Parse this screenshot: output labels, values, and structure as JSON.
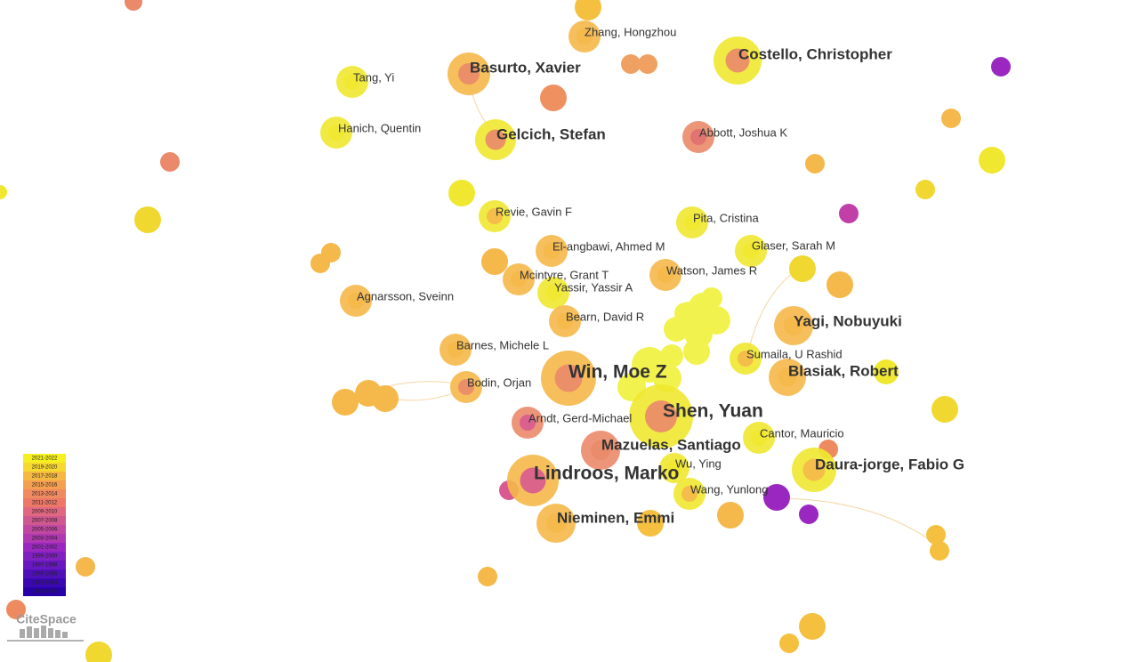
{
  "nodes": [
    {
      "label": "Zhang, Hongzhou"
    },
    {
      "label": "Basurto, Xavier"
    },
    {
      "label": "Costello, Christopher"
    },
    {
      "label": "Tang, Yi"
    },
    {
      "label": "Hanich, Quentin"
    },
    {
      "label": "Gelcich, Stefan"
    },
    {
      "label": "Abbott, Joshua K"
    },
    {
      "label": "Revie, Gavin F"
    },
    {
      "label": "Pita, Cristina"
    },
    {
      "label": "El-angbawi, Ahmed M"
    },
    {
      "label": "Glaser, Sarah M"
    },
    {
      "label": "Mcintyre, Grant T"
    },
    {
      "label": "Watson, James R"
    },
    {
      "label": "Yassir, Yassir A"
    },
    {
      "label": "Agnarsson, Sveinn"
    },
    {
      "label": "Bearn, David R"
    },
    {
      "label": "Yagi, Nobuyuki"
    },
    {
      "label": "Barnes, Michele L"
    },
    {
      "label": "Sumaila, U Rashid"
    },
    {
      "label": "Win, Moe Z"
    },
    {
      "label": "Blasiak, Robert"
    },
    {
      "label": "Bodin, Orjan"
    },
    {
      "label": "Shen, Yuan"
    },
    {
      "label": "Arndt, Gerd-Michael"
    },
    {
      "label": "Cantor, Mauricio"
    },
    {
      "label": "Mazuelas, Santiago"
    },
    {
      "label": "Daura-jorge, Fabio G"
    },
    {
      "label": "Wu, Ying"
    },
    {
      "label": "Lindroos, Marko"
    },
    {
      "label": "Wang, Yunlong"
    },
    {
      "label": "Nieminen, Emmi"
    }
  ],
  "legend": {
    "items": [
      "2021-2022",
      "2019-2020",
      "2017-2018",
      "2015-2016",
      "2013-2014",
      "2011-2012",
      "2009-2010",
      "2007-2008",
      "2005-2006",
      "2003-2004",
      "2001-2002",
      "1999-2000",
      "1997-1998",
      "1995-1996",
      "1993-1994",
      "1991-1992"
    ]
  },
  "logo": "CiteSpace"
}
